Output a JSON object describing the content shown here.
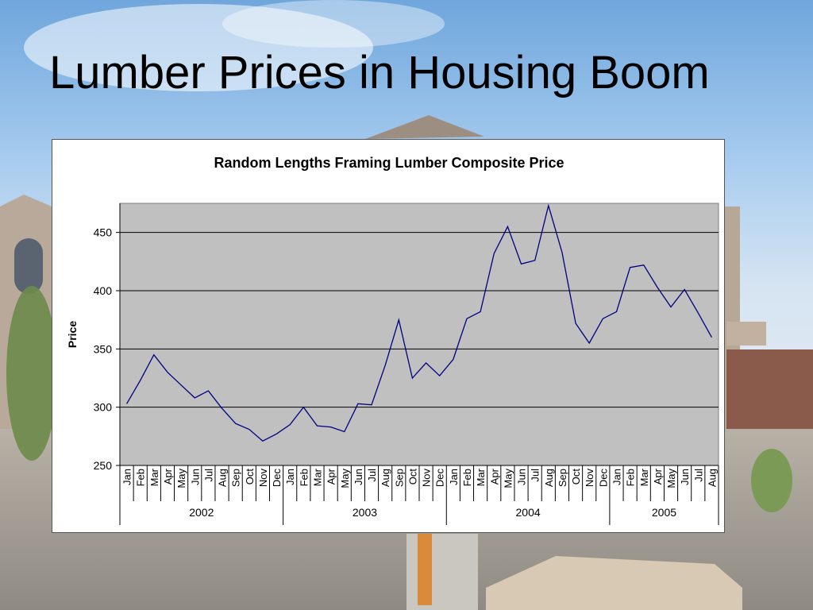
{
  "slide": {
    "title": "Lumber Prices in Housing Boom"
  },
  "colors": {
    "plot_background": "#c0c0c0",
    "line": "#000080",
    "gridline": "#000000"
  },
  "chart_data": {
    "type": "line",
    "title": "Random Lengths Framing Lumber Composite Price",
    "xlabel": "",
    "ylabel": "Price",
    "ylim": [
      250,
      475
    ],
    "yticks": [
      250,
      300,
      350,
      400,
      450
    ],
    "grid": true,
    "legend": "none",
    "years": [
      {
        "label": "2002",
        "months": 12
      },
      {
        "label": "2003",
        "months": 12
      },
      {
        "label": "2004",
        "months": 12
      },
      {
        "label": "2005",
        "months": 8
      }
    ],
    "categories": [
      "Jan",
      "Feb",
      "Mar",
      "Apr",
      "May",
      "Jun",
      "Jul",
      "Aug",
      "Sep",
      "Oct",
      "Nov",
      "Dec",
      "Jan",
      "Feb",
      "Mar",
      "Apr",
      "May",
      "Jun",
      "Jul",
      "Aug",
      "Sep",
      "Oct",
      "Nov",
      "Dec",
      "Jan",
      "Feb",
      "Mar",
      "Apr",
      "May",
      "Jun",
      "Jul",
      "Aug",
      "Sep",
      "Oct",
      "Nov",
      "Dec",
      "Jan",
      "Feb",
      "Mar",
      "Apr",
      "May",
      "Jun",
      "Jul",
      "Aug"
    ],
    "values": [
      303,
      323,
      345,
      330,
      319,
      308,
      314,
      299,
      286,
      281,
      271,
      277,
      285,
      300,
      284,
      283,
      279,
      303,
      302,
      336,
      375,
      325,
      338,
      327,
      341,
      376,
      382,
      432,
      455,
      423,
      426,
      473,
      433,
      372,
      355,
      376,
      382,
      420,
      422,
      403,
      386,
      401,
      381,
      360
    ]
  }
}
